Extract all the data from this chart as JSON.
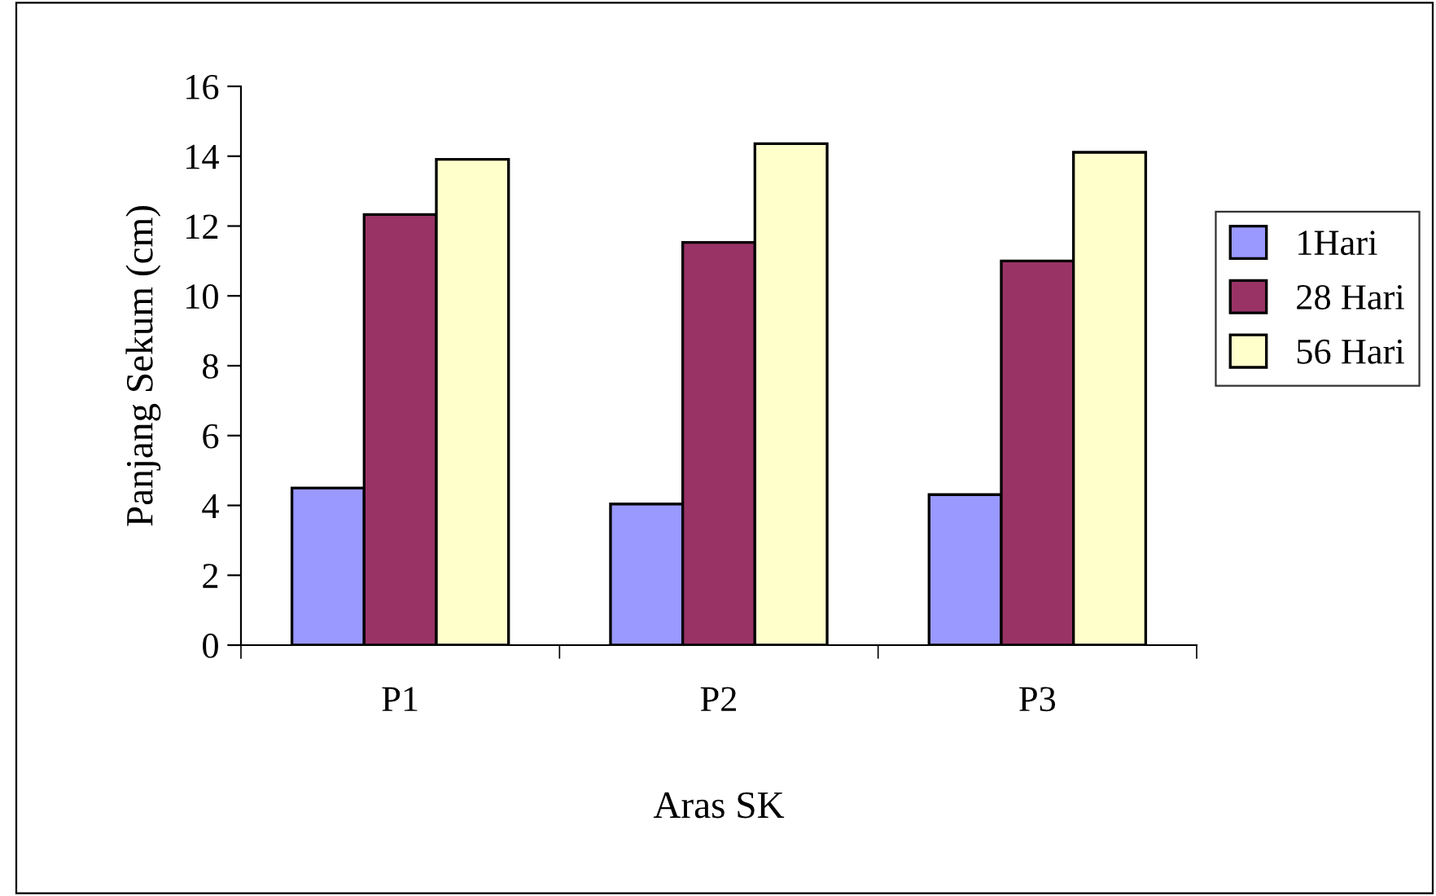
{
  "chart_data": {
    "type": "bar",
    "xlabel": "Aras SK",
    "ylabel": "Panjang Sekum (cm)",
    "categories": [
      "P1",
      "P2",
      "P3"
    ],
    "series": [
      {
        "name": "1Hari",
        "color": "#9999ff",
        "values": [
          4.5,
          4.04,
          4.31
        ]
      },
      {
        "name": "28 Hari",
        "color": "#993366",
        "values": [
          12.33,
          11.53,
          11.0
        ]
      },
      {
        "name": "56 Hari",
        "color": "#ffffcc",
        "values": [
          13.91,
          14.36,
          14.11
        ]
      }
    ],
    "ylim": [
      0,
      16
    ],
    "yticks": [
      0,
      2,
      4,
      6,
      8,
      10,
      12,
      14,
      16
    ],
    "grid": false,
    "legend": "right"
  }
}
